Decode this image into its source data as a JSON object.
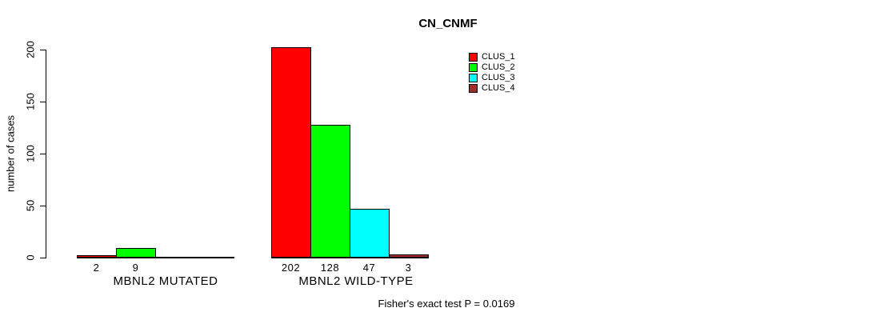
{
  "chart_data": {
    "type": "bar",
    "title": "CN_CNMF",
    "ylabel": "number of cases",
    "xlabel": "",
    "ylim": [
      0,
      200
    ],
    "yticks": [
      0,
      50,
      100,
      150,
      200
    ],
    "grid": false,
    "legend_position": "top-right",
    "series": [
      {
        "name": "CLUS_1",
        "color": "#FF0000"
      },
      {
        "name": "CLUS_2",
        "color": "#00FF00"
      },
      {
        "name": "CLUS_3",
        "color": "#00FFFF"
      },
      {
        "name": "CLUS_4",
        "color": "#A52A2A"
      }
    ],
    "categories": [
      "MBNL2 MUTATED",
      "MBNL2 WILD-TYPE"
    ],
    "groups": [
      {
        "label": "MBNL2 MUTATED",
        "values": [
          2,
          9,
          0,
          0
        ],
        "bar_labels": [
          "2",
          "9",
          "",
          ""
        ]
      },
      {
        "label": "MBNL2 WILD-TYPE",
        "values": [
          202,
          128,
          47,
          3
        ],
        "bar_labels": [
          "202",
          "128",
          "47",
          "3"
        ]
      }
    ],
    "annotation": "Fisher's exact test P = 0.0169"
  }
}
